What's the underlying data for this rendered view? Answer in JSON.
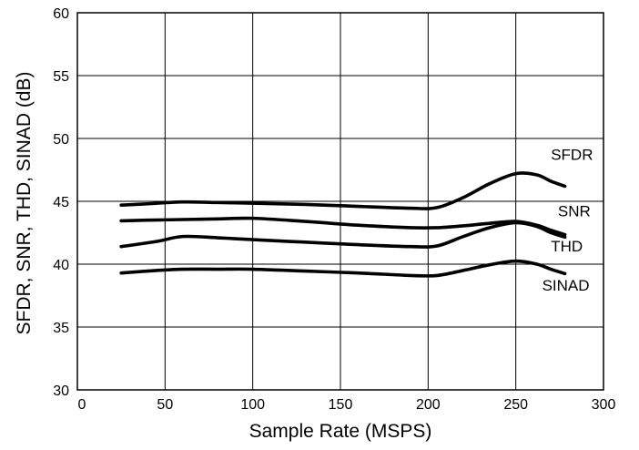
{
  "chart_data": {
    "type": "line",
    "title": "",
    "xlabel": "Sample Rate (MSPS)",
    "ylabel": "SFDR, SNR, THD, SINAD (dB)",
    "xlim": [
      0,
      300
    ],
    "ylim": [
      30,
      60
    ],
    "xticks": [
      0,
      50,
      100,
      150,
      200,
      250,
      300
    ],
    "yticks": [
      30,
      35,
      40,
      45,
      50,
      55,
      60
    ],
    "grid": true,
    "legend": "inline labels at right end of each line",
    "series": [
      {
        "name": "SFDR",
        "x": [
          25,
          40,
          60,
          80,
          100,
          130,
          160,
          190,
          205,
          220,
          235,
          250,
          262,
          270,
          278
        ],
        "y": [
          44.7,
          44.8,
          44.95,
          44.9,
          44.85,
          44.75,
          44.6,
          44.45,
          44.5,
          45.3,
          46.4,
          47.2,
          47.1,
          46.6,
          46.2
        ]
      },
      {
        "name": "SNR",
        "x": [
          25,
          40,
          60,
          80,
          100,
          130,
          160,
          190,
          205,
          220,
          235,
          250,
          262,
          270,
          278
        ],
        "y": [
          43.45,
          43.5,
          43.55,
          43.6,
          43.65,
          43.4,
          43.1,
          42.9,
          42.9,
          43.05,
          43.25,
          43.4,
          43.1,
          42.7,
          42.35
        ]
      },
      {
        "name": "THD",
        "x": [
          25,
          45,
          60,
          80,
          100,
          130,
          160,
          190,
          205,
          220,
          235,
          250,
          262,
          270,
          278
        ],
        "y": [
          41.4,
          41.8,
          42.2,
          42.1,
          41.95,
          41.75,
          41.55,
          41.4,
          41.45,
          42.2,
          42.9,
          43.3,
          43.0,
          42.5,
          42.15
        ]
      },
      {
        "name": "SINAD",
        "x": [
          25,
          45,
          60,
          80,
          100,
          130,
          160,
          190,
          205,
          220,
          235,
          250,
          262,
          270,
          278
        ],
        "y": [
          39.3,
          39.5,
          39.6,
          39.6,
          39.6,
          39.45,
          39.3,
          39.1,
          39.1,
          39.5,
          39.95,
          40.25,
          40.0,
          39.6,
          39.25
        ]
      }
    ],
    "labels": [
      {
        "text": "SFDR",
        "x": 270,
        "y": 48.3
      },
      {
        "text": "SNR",
        "x": 274,
        "y": 43.8
      },
      {
        "text": "THD",
        "x": 270,
        "y": 41.0
      },
      {
        "text": "SINAD",
        "x": 265,
        "y": 37.9
      }
    ]
  }
}
